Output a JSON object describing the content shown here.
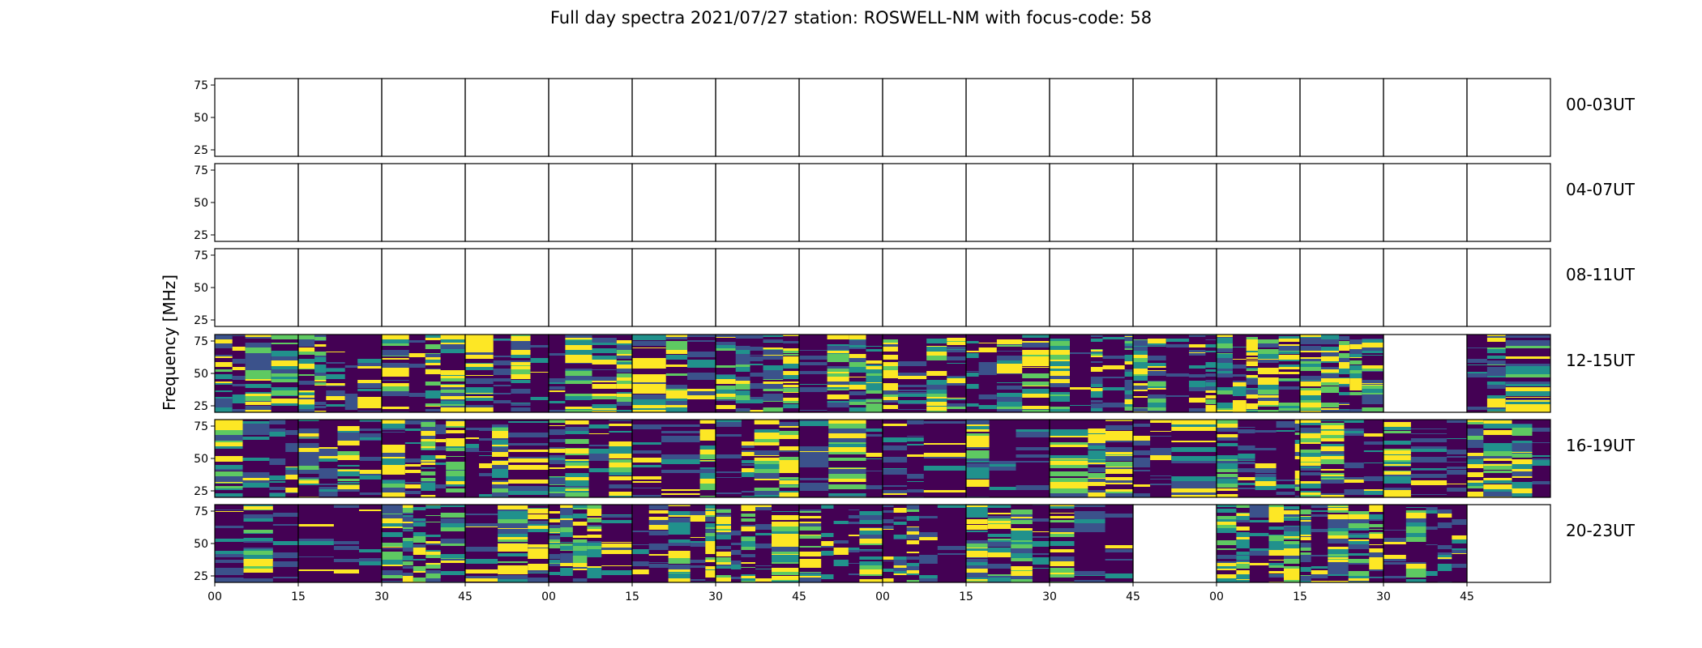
{
  "chart_data": {
    "type": "heatmap",
    "title": "Full day spectra 2021/07/27 station: ROSWELL-NM with focus-code: 58",
    "ylabel": "Frequency [MHz]",
    "ylim": [
      20,
      80
    ],
    "y_ticks": [
      "75",
      "50",
      "25"
    ],
    "y_tick_values": [
      75,
      50,
      25
    ],
    "x_ticks": [
      "00",
      "15",
      "30",
      "45",
      "00",
      "15",
      "30",
      "45",
      "00",
      "15",
      "30",
      "45",
      "00",
      "15",
      "30",
      "45"
    ],
    "colormap": [
      "#440154",
      "#3b528b",
      "#21918c",
      "#5ec962",
      "#fde725"
    ],
    "rows": [
      {
        "label": "00-03UT",
        "panels_with_data": [
          false,
          false,
          false,
          false,
          false,
          false,
          false,
          false,
          false,
          false,
          false,
          false,
          false,
          false,
          false,
          false
        ]
      },
      {
        "label": "04-07UT",
        "panels_with_data": [
          false,
          false,
          false,
          false,
          false,
          false,
          false,
          false,
          false,
          false,
          false,
          false,
          false,
          false,
          false,
          false
        ]
      },
      {
        "label": "08-11UT",
        "panels_with_data": [
          false,
          false,
          false,
          false,
          false,
          false,
          false,
          false,
          false,
          false,
          false,
          false,
          false,
          false,
          false,
          false
        ]
      },
      {
        "label": "12-15UT",
        "panels_with_data": [
          true,
          true,
          true,
          true,
          true,
          true,
          true,
          true,
          true,
          true,
          true,
          true,
          true,
          true,
          false,
          true
        ]
      },
      {
        "label": "16-19UT",
        "panels_with_data": [
          true,
          true,
          true,
          true,
          true,
          true,
          true,
          true,
          true,
          true,
          true,
          true,
          true,
          true,
          true,
          true
        ]
      },
      {
        "label": "20-23UT",
        "panels_with_data": [
          true,
          true,
          true,
          true,
          true,
          true,
          true,
          true,
          true,
          true,
          true,
          false,
          true,
          true,
          true,
          false
        ]
      }
    ]
  }
}
